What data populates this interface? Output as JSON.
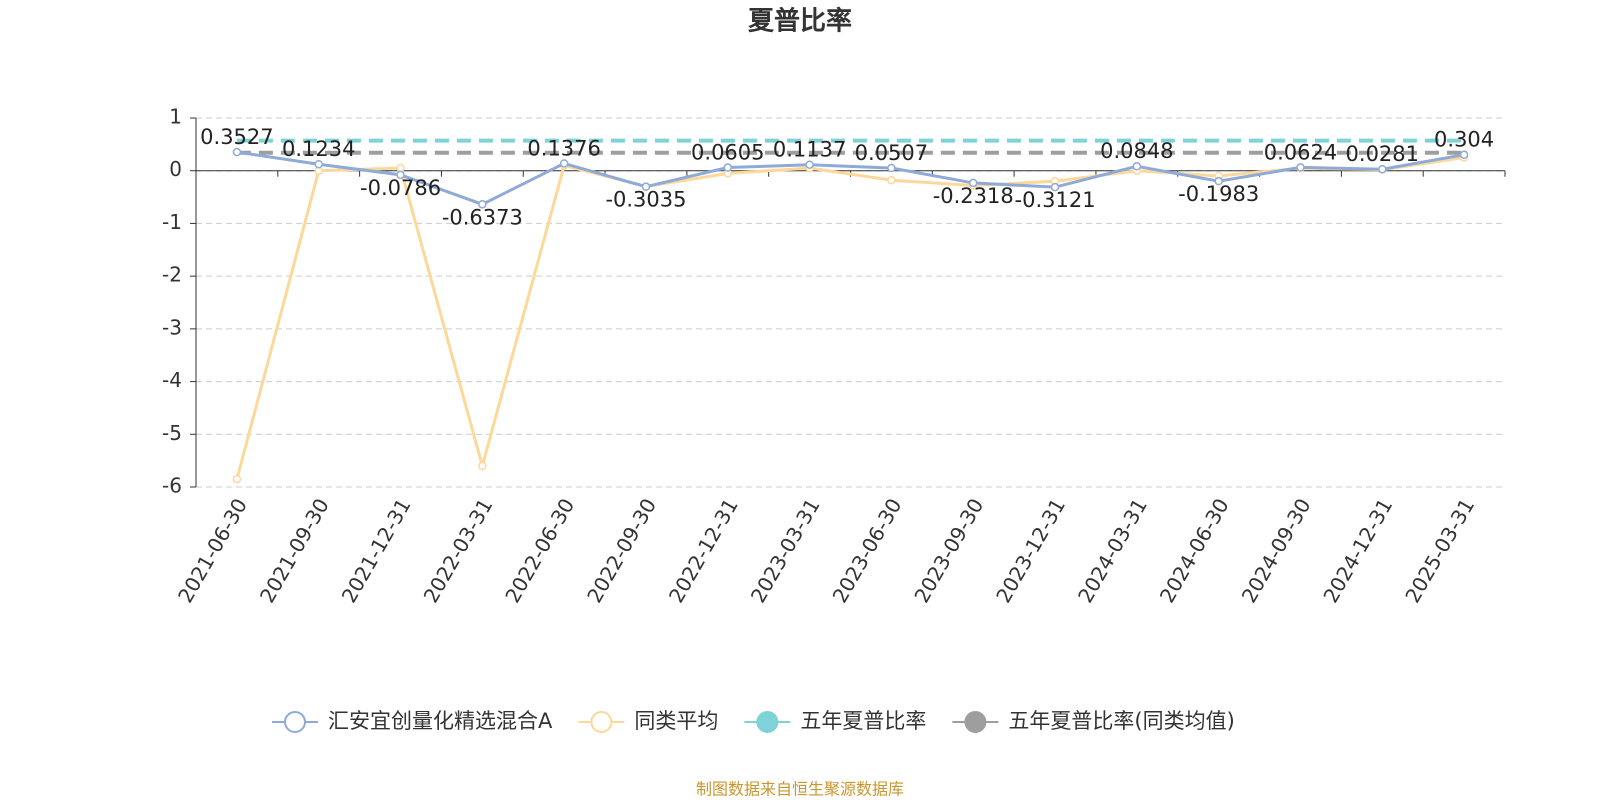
{
  "chart_data": {
    "type": "line",
    "title": "夏普比率",
    "categories": [
      "2021-06-30",
      "2021-09-30",
      "2021-12-31",
      "2022-03-31",
      "2022-06-30",
      "2022-09-30",
      "2022-12-31",
      "2023-03-31",
      "2023-06-30",
      "2023-09-30",
      "2023-12-31",
      "2024-03-31",
      "2024-06-30",
      "2024-09-30",
      "2024-12-31",
      "2025-03-31"
    ],
    "series": [
      {
        "name": "汇安宜创量化精选混合A",
        "color": "#8eaad8",
        "values": [
          0.3527,
          0.1234,
          -0.0786,
          -0.6373,
          0.1376,
          -0.3035,
          0.0605,
          0.1137,
          0.0507,
          -0.2318,
          -0.3121,
          0.0848,
          -0.1983,
          0.0624,
          0.0281,
          0.304
        ]
      },
      {
        "name": "同类平均",
        "color": "#fdd89a",
        "values": [
          -5.85,
          0.0,
          0.05,
          -5.6,
          0.1,
          -0.3,
          -0.05,
          0.05,
          -0.18,
          -0.28,
          -0.2,
          0.0,
          -0.1,
          0.05,
          0.02,
          0.25
        ]
      }
    ],
    "reference_lines": [
      {
        "name": "五年夏普比率",
        "color": "#7fd3d8",
        "value": 0.57
      },
      {
        "name": "五年夏普比率(同类均值)",
        "color": "#9e9e9e",
        "value": 0.34
      }
    ],
    "ylim": [
      -6,
      1
    ],
    "yticks": [
      -6,
      -5,
      -4,
      -3,
      -2,
      -1,
      0,
      1
    ],
    "grid": true,
    "source": "制图数据来自恒生聚源数据库"
  }
}
